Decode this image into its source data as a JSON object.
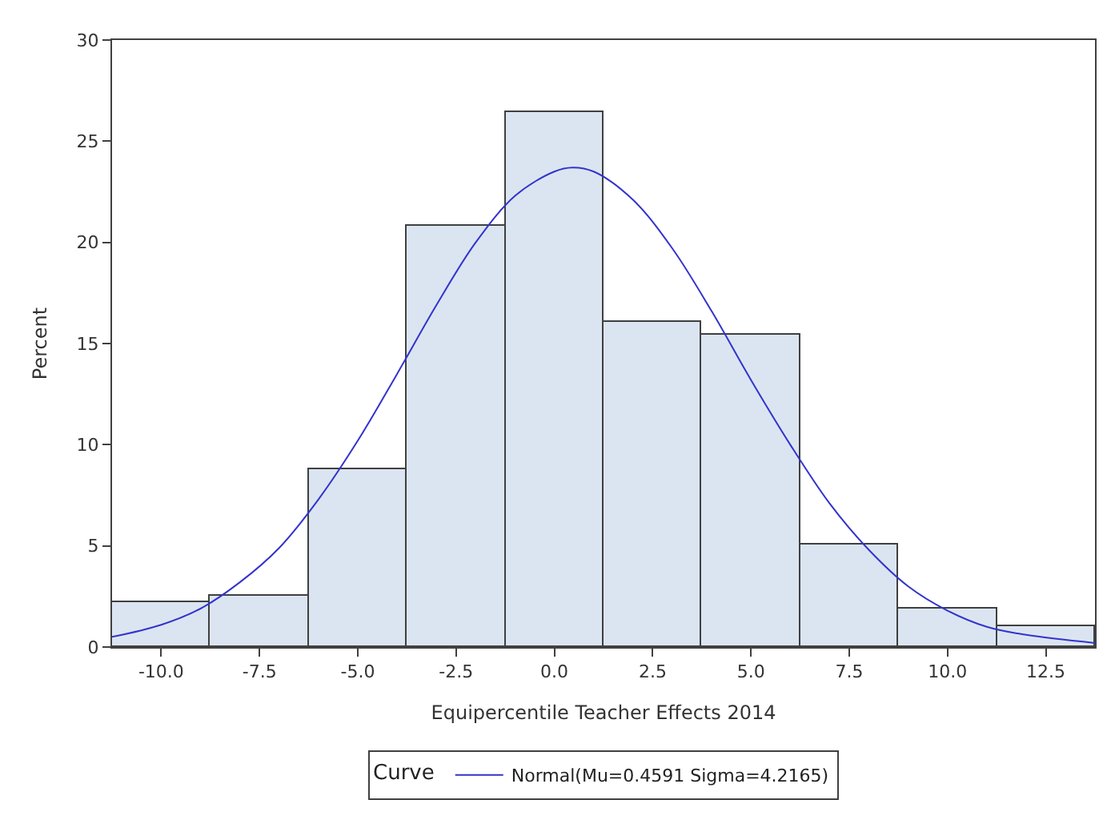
{
  "chart_data": {
    "type": "histogram",
    "xlabel": "Equipercentile Teacher Effects 2014",
    "ylabel": "Percent",
    "bins": [
      -11.25,
      -8.75,
      -6.25,
      -3.75,
      -1.25,
      1.25,
      3.75,
      6.25,
      8.75,
      11.25,
      13.75
    ],
    "values": [
      2.2,
      2.5,
      8.8,
      20.8,
      26.4,
      16.1,
      15.4,
      5.1,
      1.9,
      1.0
    ],
    "color": "#dbe5f1",
    "series": [
      {
        "name": "Normal(Mu=0.4591 Sigma=4.2165)",
        "type": "line",
        "color": "#3333cc",
        "x": [
          -11.25,
          -10,
          -9,
          -8,
          -7,
          -6,
          -5,
          -4,
          -3,
          -2,
          -1,
          0,
          0.46,
          1,
          2,
          3,
          4,
          5,
          6,
          7,
          8,
          9,
          10,
          11,
          12,
          13.75
        ],
        "values": [
          0.5,
          1.1,
          1.9,
          3.2,
          4.9,
          7.3,
          10.2,
          13.5,
          16.9,
          20.0,
          22.3,
          23.5,
          23.7,
          23.5,
          22.1,
          19.7,
          16.6,
          13.2,
          10.0,
          7.1,
          4.8,
          3.0,
          1.8,
          1.0,
          0.6,
          0.2
        ]
      }
    ],
    "legend_title": "Curve",
    "legend": "bottom",
    "xlim": [
      -11.25,
      13.75
    ],
    "xticks": [
      {
        "value": -10,
        "label": "-10.0"
      },
      {
        "value": -7.5,
        "label": "-7.5"
      },
      {
        "value": -5,
        "label": "-5.0"
      },
      {
        "value": -2.5,
        "label": "-2.5"
      },
      {
        "value": 0,
        "label": "0.0"
      },
      {
        "value": 2.5,
        "label": "2.5"
      },
      {
        "value": 5,
        "label": "5.0"
      },
      {
        "value": 7.5,
        "label": "7.5"
      },
      {
        "value": 10,
        "label": "10.0"
      },
      {
        "value": 12.5,
        "label": "12.5"
      }
    ],
    "ylim": [
      0,
      30
    ],
    "yticks": [
      0,
      5,
      10,
      15,
      20,
      25,
      30
    ]
  }
}
